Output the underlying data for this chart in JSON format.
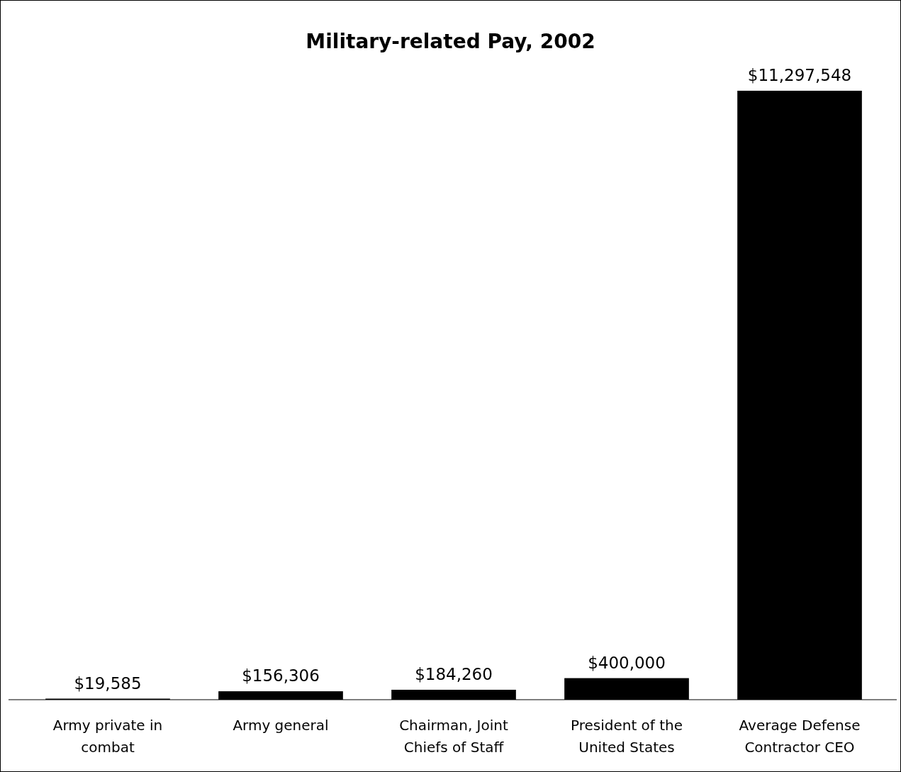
{
  "chart_data": {
    "type": "bar",
    "title": "Military-related Pay, 2002",
    "categories": [
      "Army private in combat",
      "Army general",
      "Chairman, Joint Chiefs of Staff",
      "President of the United States",
      "Average Defense Contractor CEO"
    ],
    "values": [
      19585,
      156306,
      184260,
      400000,
      11297548
    ],
    "value_labels": [
      "$19,585",
      "$156,306",
      "$184,260",
      "$400,000",
      "$11,297,548"
    ],
    "color": "#000000"
  }
}
